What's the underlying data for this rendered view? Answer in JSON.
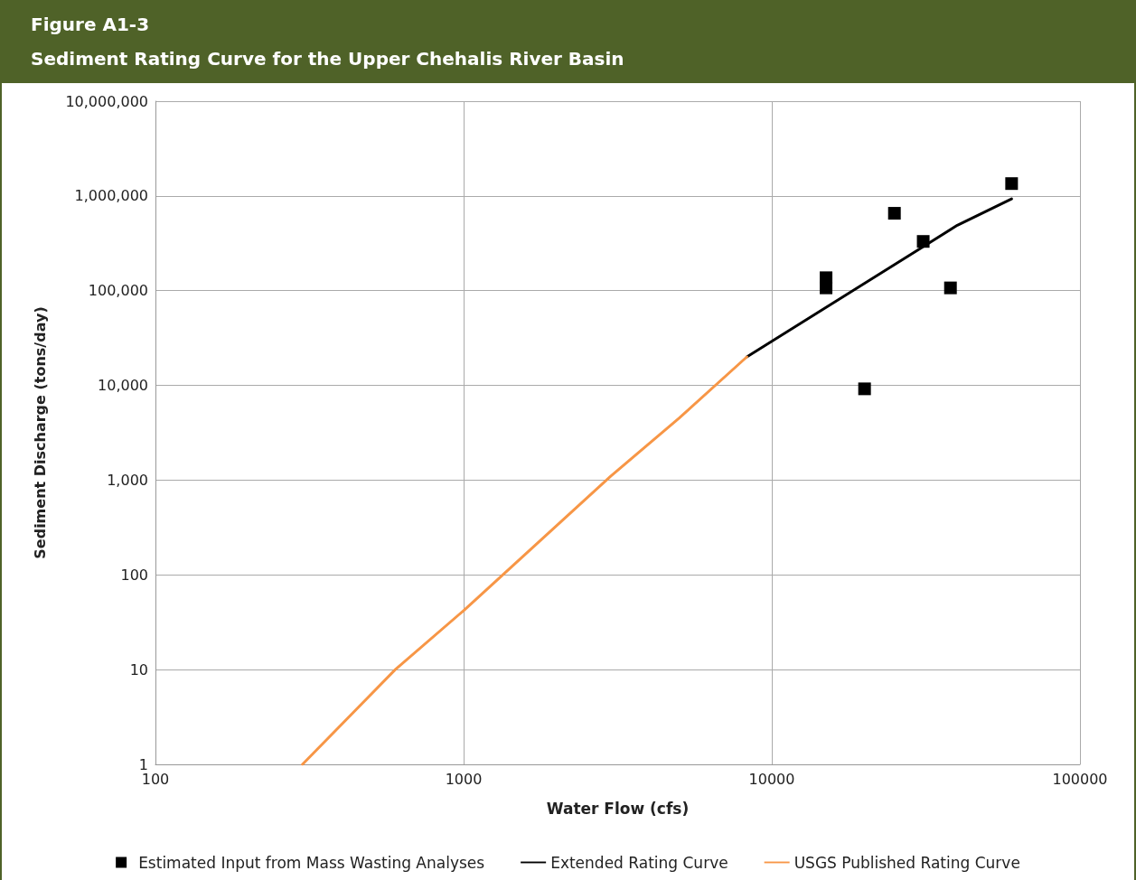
{
  "chart_data": {
    "type": "line",
    "title": "Figure A1-3",
    "subtitle": "Sediment Rating Curve for the Upper Chehalis River Basin",
    "xlabel": "Water Flow (cfs)",
    "ylabel": "Sediment Discharge (tons/day)",
    "log": "xy",
    "grid": true,
    "legend": "bottom",
    "xlim": [
      100,
      100000
    ],
    "xticks": [
      100,
      1000,
      10000,
      100000
    ],
    "ylim": [
      1,
      10000000
    ],
    "yticks": [
      {
        "value": 1,
        "label": "1"
      },
      {
        "value": 10,
        "label": "10"
      },
      {
        "value": 100,
        "label": "100"
      },
      {
        "value": 1000,
        "label": "1,000"
      },
      {
        "value": 10000,
        "label": "10,000"
      },
      {
        "value": 100000,
        "label": "100,000"
      },
      {
        "value": 1000000,
        "label": "1,000,000"
      },
      {
        "value": 10000000,
        "label": "10,000,000"
      }
    ],
    "series": [
      {
        "name": "Estimated Input from Mass Wasting Analyses",
        "type": "scatter",
        "marker": "square",
        "color": "#000000",
        "x": [
          15000,
          15000,
          20000,
          25000,
          31000,
          38000,
          60000
        ],
        "values": [
          137000,
          107000,
          9200,
          656000,
          331000,
          107000,
          1350000
        ]
      },
      {
        "name": "Extended Rating Curve",
        "marker": "none",
        "color": "#000000",
        "x": [
          8300,
          40000,
          60000
        ],
        "values": [
          20000,
          490000,
          930000
        ]
      },
      {
        "name": "USGS Published Rating Curve",
        "marker": "none",
        "color": "#f79646",
        "x": [
          300,
          600,
          1000,
          3000,
          5000,
          8300
        ],
        "values": [
          1,
          10,
          42,
          1100,
          4500,
          20000
        ]
      }
    ]
  }
}
